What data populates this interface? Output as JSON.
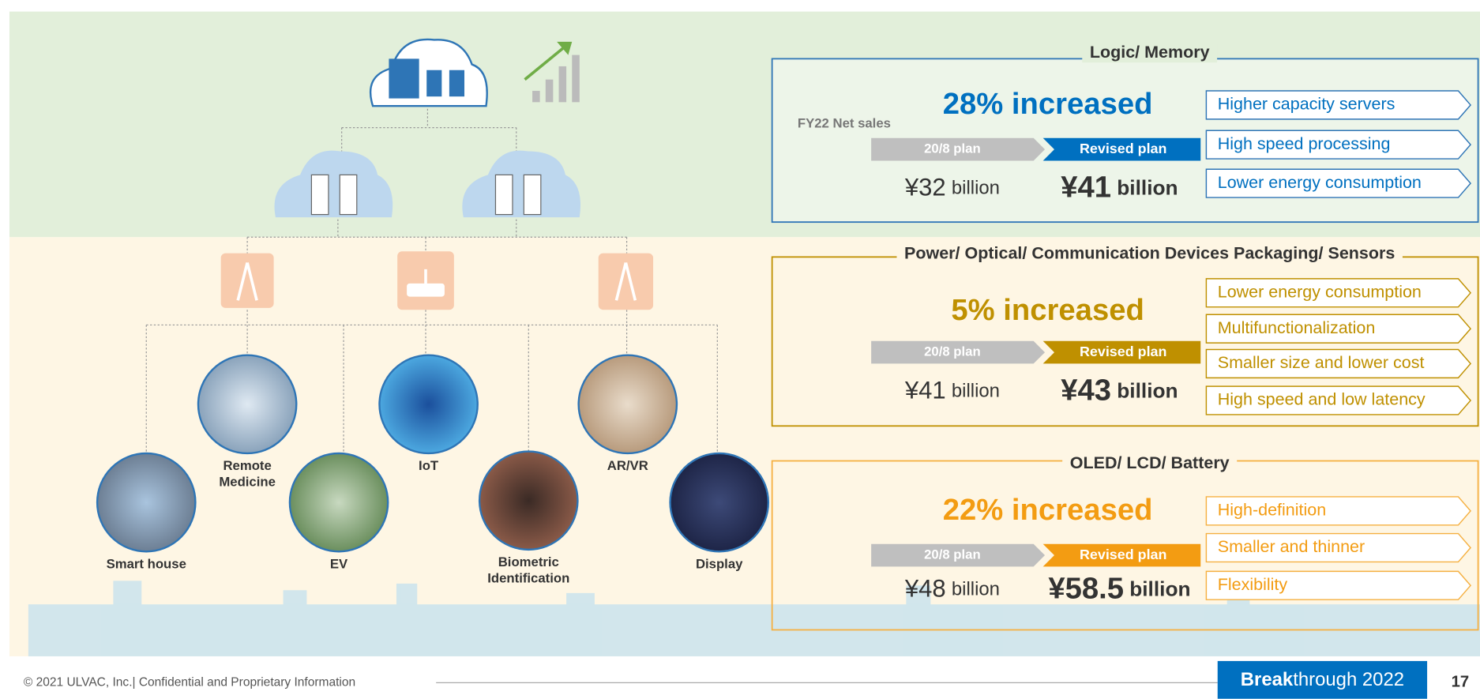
{
  "diagram": {
    "nodes": [
      {
        "lines": [
          "Smart house"
        ]
      },
      {
        "lines": [
          "Remote",
          "Medicine"
        ]
      },
      {
        "lines": [
          "EV"
        ]
      },
      {
        "lines": [
          "IoT"
        ]
      },
      {
        "lines": [
          "Biometric",
          "Identification"
        ]
      },
      {
        "lines": [
          "AR/VR"
        ]
      },
      {
        "lines": [
          "Display"
        ]
      }
    ]
  },
  "panels": [
    {
      "title": "Logic/ Memory",
      "label": "FY22 Net sales",
      "headline": "28% increased",
      "old_plan": "20/8 plan",
      "new_plan": "Revised plan",
      "old_amount": "¥32",
      "old_unit": "billion",
      "new_amount": "¥41",
      "new_unit": "billion",
      "points": [
        "Higher capacity servers",
        "High speed processing",
        "Lower energy consumption"
      ]
    },
    {
      "title": "Power/ Optical/ Communication Devices Packaging/ Sensors",
      "headline": "5% increased",
      "old_plan": "20/8 plan",
      "new_plan": "Revised plan",
      "old_amount": "¥41",
      "old_unit": "billion",
      "new_amount": "¥43",
      "new_unit": "billion",
      "points": [
        "Lower energy consumption",
        "Multifunctionalization",
        "Smaller size and lower cost",
        "High speed and low latency"
      ]
    },
    {
      "title": "OLED/ LCD/ Battery",
      "headline": "22% increased",
      "old_plan": "20/8 plan",
      "new_plan": "Revised plan",
      "old_amount": "¥48",
      "old_unit": "billion",
      "new_amount": "¥58.5",
      "new_unit": "billion",
      "points": [
        "High-definition",
        "Smaller and thinner",
        "Flexibility"
      ]
    }
  ],
  "footer": {
    "copyright": "© 2021 ULVAC, Inc.| Confidential and Proprietary Information",
    "brand_bold": "Break",
    "brand_rest": "through 2022",
    "page": "17"
  }
}
